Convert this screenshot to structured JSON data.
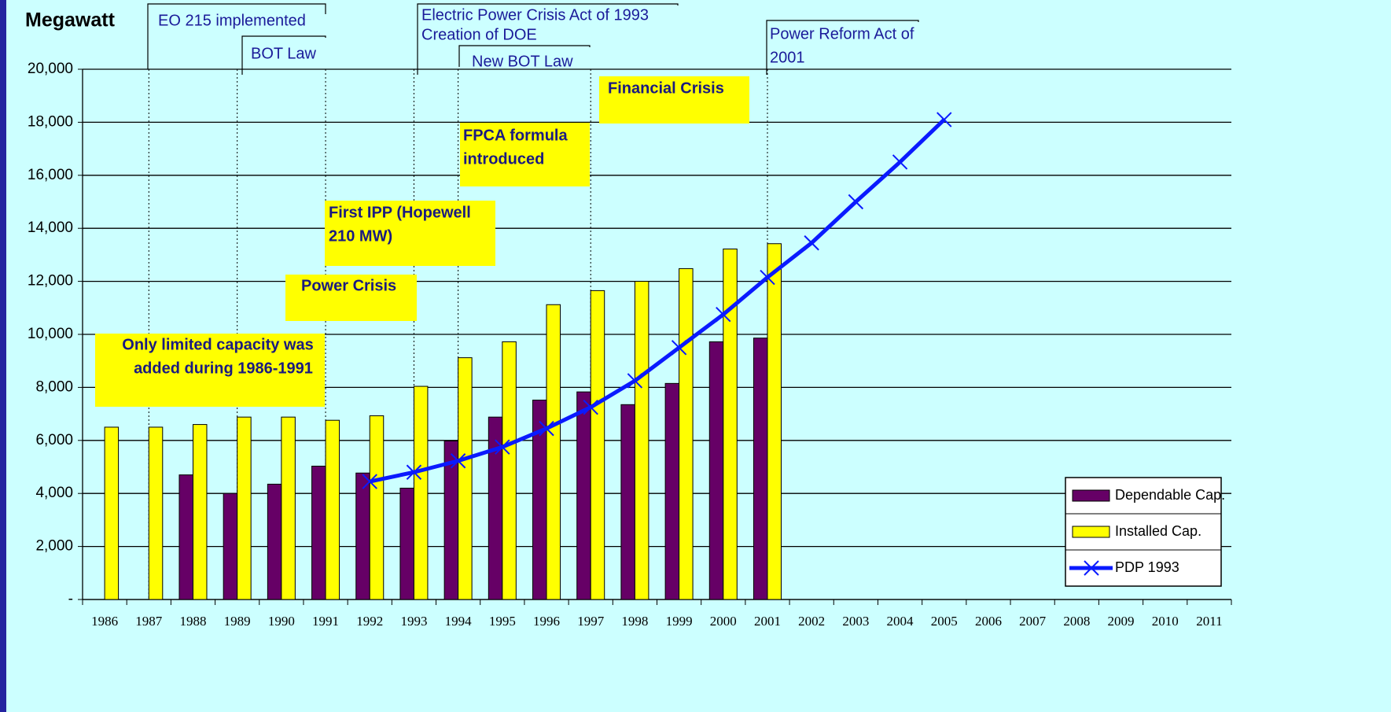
{
  "chart_data": {
    "type": "bar",
    "y_axis_label": "Megawatt",
    "categories": [
      "1986",
      "1987",
      "1988",
      "1989",
      "1990",
      "1991",
      "1992",
      "1993",
      "1994",
      "1995",
      "1996",
      "1997",
      "1998",
      "1999",
      "2000",
      "2001",
      "2002",
      "2003",
      "2004",
      "2005",
      "2006",
      "2007",
      "2008",
      "2009",
      "2010",
      "2011"
    ],
    "series": [
      {
        "name": "Dependable Cap.",
        "type": "bar",
        "color": "#660066",
        "values": [
          null,
          null,
          4700,
          4000,
          4350,
          5030,
          4770,
          4200,
          5980,
          6880,
          7520,
          7830,
          7350,
          8150,
          9720,
          9860,
          null,
          null,
          null,
          null,
          null,
          null,
          null,
          null,
          null,
          null
        ]
      },
      {
        "name": "Installed Cap.",
        "type": "bar",
        "color": "#ffff00",
        "values": [
          6500,
          6500,
          6600,
          6880,
          6880,
          6760,
          6930,
          8040,
          9120,
          9720,
          11120,
          11650,
          12000,
          12480,
          13220,
          13420,
          null,
          null,
          null,
          null,
          null,
          null,
          null,
          null,
          null,
          null
        ]
      },
      {
        "name": "PDP 1993",
        "type": "line",
        "marker": "x",
        "color": "#0a1aff",
        "values": [
          null,
          null,
          null,
          null,
          null,
          null,
          4450,
          4800,
          5230,
          5750,
          6450,
          7250,
          8250,
          9500,
          10750,
          12150,
          13450,
          15000,
          16500,
          18100,
          null,
          null,
          null,
          null,
          null,
          null
        ]
      }
    ],
    "ylim": [
      0,
      20000
    ],
    "yticks": [
      {
        "value": 0,
        "label": "-"
      },
      {
        "value": 2000,
        "label": "2,000"
      },
      {
        "value": 4000,
        "label": "4,000"
      },
      {
        "value": 6000,
        "label": "6,000"
      },
      {
        "value": 8000,
        "label": "8,000"
      },
      {
        "value": 10000,
        "label": "10,000"
      },
      {
        "value": 12000,
        "label": "12,000"
      },
      {
        "value": 14000,
        "label": "14,000"
      },
      {
        "value": 16000,
        "label": "16,000"
      },
      {
        "value": 18000,
        "label": "18,000"
      },
      {
        "value": 20000,
        "label": "20,000"
      }
    ],
    "grid": true,
    "legend": "lower right",
    "events": [
      [
        "EO 215 implemented"
      ],
      [
        "BOT Law"
      ],
      [
        "Electric Power Crisis Act of 1993",
        "Creation of DOE"
      ],
      [
        "New BOT Law"
      ],
      [
        "Power Reform Act of",
        "2001"
      ]
    ],
    "boxes": [
      [
        "Financial Crisis"
      ],
      [
        "FPCA formula",
        "introduced"
      ],
      [
        "First IPP (Hopewell",
        "210 MW)"
      ],
      [
        "Power Crisis"
      ],
      [
        "Only limited capacity was",
        "added during 1986-1991"
      ]
    ]
  }
}
